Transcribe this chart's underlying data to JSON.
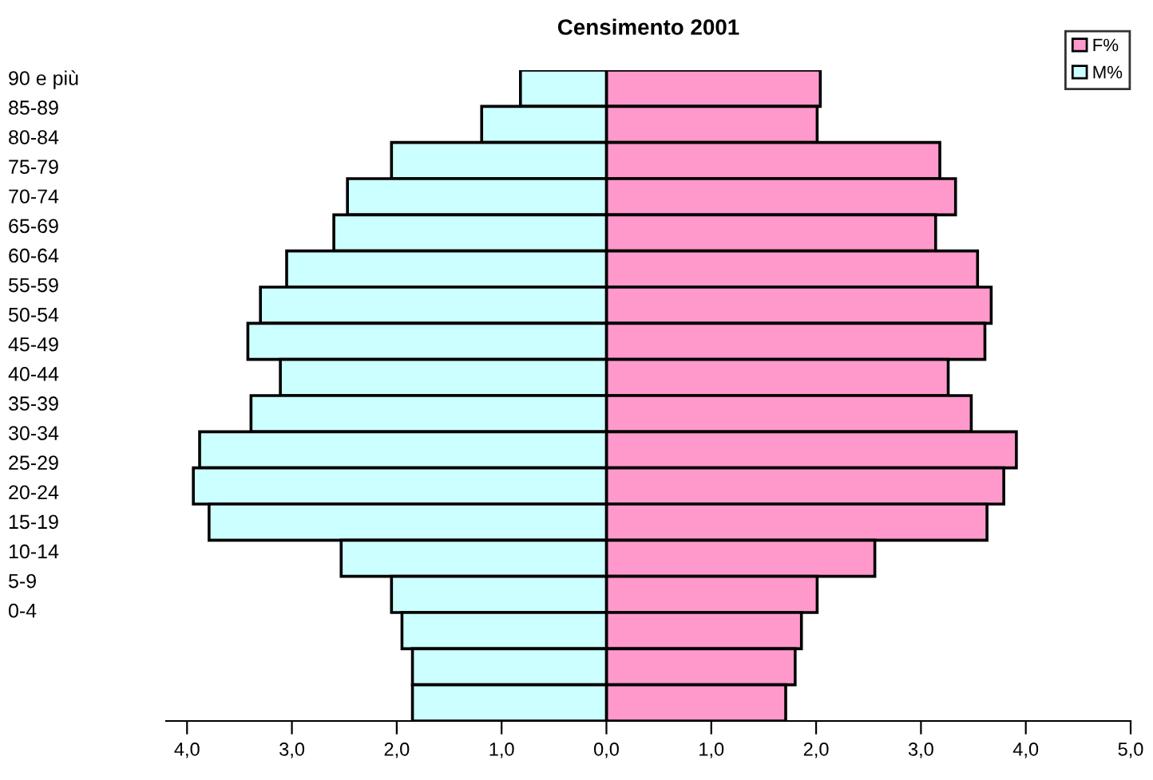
{
  "chart_data": {
    "type": "bar",
    "orientation": "horizontal",
    "stacked": true,
    "title": "Censimento 2001",
    "categories": [
      null,
      null,
      null,
      null,
      null,
      null,
      null,
      null,
      null,
      null,
      null,
      null,
      null,
      null,
      null,
      null,
      null,
      null
    ],
    "series": [
      {
        "name": "F%",
        "color": "#ff99cc",
        "values": [
          2.04,
          2.01,
          3.18,
          3.33,
          3.14,
          3.54,
          3.67,
          3.61,
          3.26,
          3.48,
          3.91,
          3.79,
          3.63,
          2.56,
          2.01,
          1.86,
          1.8,
          1.71
        ]
      },
      {
        "name": "M%",
        "color": "#ccffff",
        "values": [
          -0.82,
          -1.19,
          -2.05,
          -2.47,
          -2.6,
          -3.05,
          -3.3,
          -3.42,
          -3.11,
          -3.39,
          -3.88,
          -3.94,
          -3.79,
          -2.53,
          -2.05,
          -1.95,
          -1.85,
          -1.85
        ]
      }
    ],
    "xlim": [
      -4.2,
      5
    ],
    "xticks": [
      {
        "value": -4,
        "label": "4,0"
      },
      {
        "value": -3,
        "label": "3,0"
      },
      {
        "value": -2,
        "label": "2,0"
      },
      {
        "value": -1,
        "label": "1,0"
      },
      {
        "value": 0,
        "label": "0,0"
      },
      {
        "value": 1,
        "label": "1,0"
      },
      {
        "value": 2,
        "label": "2,0"
      },
      {
        "value": 3,
        "label": "3,0"
      },
      {
        "value": 4,
        "label": "4,0"
      },
      {
        "value": 5,
        "label": "5,0"
      }
    ],
    "grid": false,
    "legend": "top right",
    "annotations": [
      "90 e più",
      "85-89",
      "80-84",
      "75-79",
      "70-74",
      "65-69",
      "60-64",
      "55-59",
      "50-54",
      "45-49",
      "40-44",
      "35-39",
      "30-34",
      "25-29",
      "20-24",
      "15-19",
      "10-14",
      "5-9",
      "0-4"
    ]
  }
}
